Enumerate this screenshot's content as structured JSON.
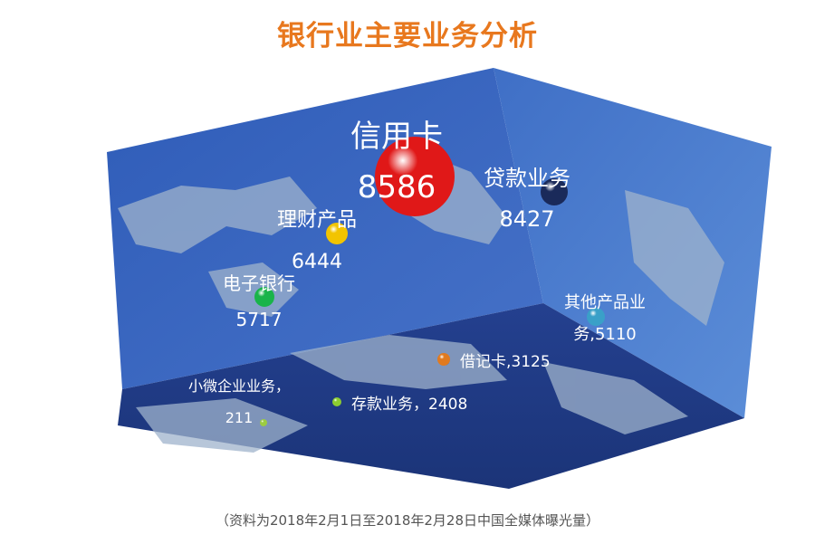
{
  "title": "银行业主要业务分析",
  "note": "（资料为2018年2月1日至2018年2月28日中国全媒体曝光量）",
  "colors": {
    "title": "#e8781e",
    "box_back": "#3a63b8",
    "box_right": "#4a7cd0",
    "box_floor": "#1d3a8a",
    "land": "#9fb3cc"
  },
  "chart_data": {
    "type": "bubble",
    "title": "银行业主要业务分析",
    "items": [
      {
        "name": "信用卡",
        "value": 8586,
        "label": [
          "信用卡",
          "8586"
        ],
        "color": "#e01818"
      },
      {
        "name": "贷款业务",
        "value": 8427,
        "label": [
          "贷款业务",
          "8427"
        ],
        "color": "#1a2a5a"
      },
      {
        "name": "理财产品",
        "value": 6444,
        "label": [
          "理财产品",
          "6444"
        ],
        "color": "#f2c400"
      },
      {
        "name": "电子银行",
        "value": 5717,
        "label": [
          "电子银行",
          "5717"
        ],
        "color": "#19b44a"
      },
      {
        "name": "其他产品业务",
        "value": 5110,
        "label": [
          "其他产品业",
          "务,5110"
        ],
        "color": "#3aa0c8"
      },
      {
        "name": "借记卡",
        "value": 3125,
        "label": [
          "借记卡,3125"
        ],
        "color": "#e07a20"
      },
      {
        "name": "存款业务",
        "value": 2408,
        "label": [
          "存款业务，2408"
        ],
        "color": "#8ccc30"
      },
      {
        "name": "小微企业业务",
        "value": 211,
        "label": [
          "小微企业业务，",
          "211"
        ],
        "color": "#9ccc40"
      }
    ]
  }
}
